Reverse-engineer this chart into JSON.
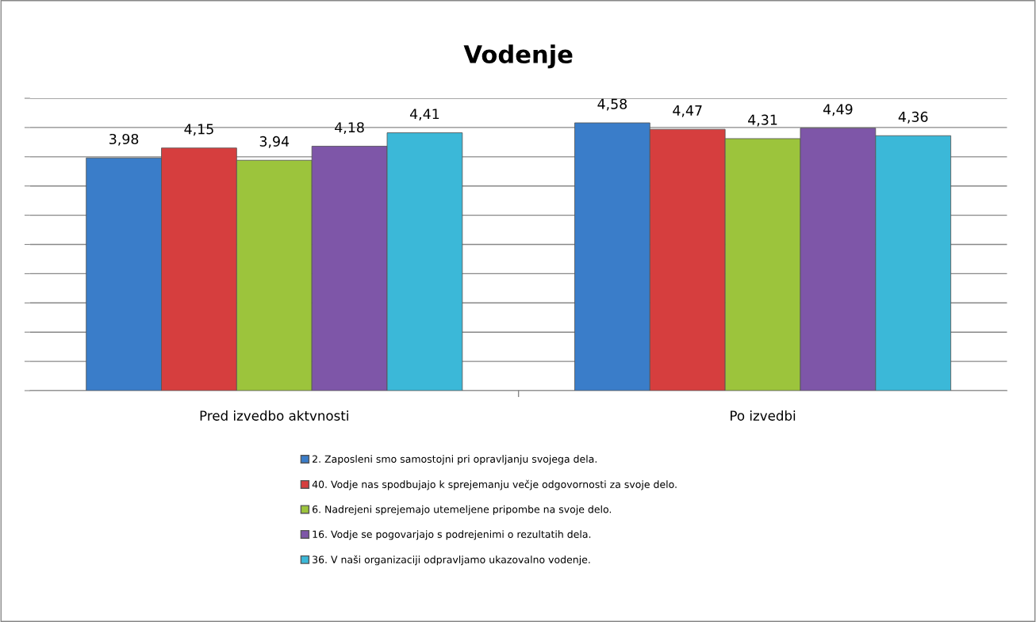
{
  "chart_data": {
    "type": "bar",
    "title": "Vodenje",
    "categories": [
      "Pred izvedbo aktvnosti",
      "Po izvedbi"
    ],
    "series": [
      {
        "name": "2. Zaposleni smo samostojni pri opravljanju svojega dela.",
        "color": "#3a7dc9",
        "values": [
          3.98,
          4.58
        ],
        "value_labels": [
          "3,98",
          "4,58"
        ]
      },
      {
        "name": "40. Vodje nas spodbujajo k sprejemanju večje odgovornosti za svoje delo.",
        "color": "#d63e3e",
        "values": [
          4.15,
          4.47
        ],
        "value_labels": [
          "4,15",
          "4,47"
        ]
      },
      {
        "name": "6. Nadrejeni sprejemajo utemeljene pripombe na svoje delo.",
        "color": "#9cc43c",
        "values": [
          3.94,
          4.31
        ],
        "value_labels": [
          "3,94",
          "4,31"
        ]
      },
      {
        "name": "16. Vodje se pogovarjajo s podrejenimi o rezultatih dela.",
        "color": "#7e56a8",
        "values": [
          4.18,
          4.49
        ],
        "value_labels": [
          "4,18",
          "4,49"
        ]
      },
      {
        "name": "36. V naši organizaciji odpravljamo ukazovalno vodenje.",
        "color": "#3bb8d8",
        "values": [
          4.41,
          4.36
        ],
        "value_labels": [
          "4,41",
          "4,36"
        ]
      }
    ],
    "ylim": [
      0,
      5
    ],
    "yticks": [
      {
        "value": 0,
        "label": null
      },
      {
        "value": 0.5,
        "label": null
      },
      {
        "value": 1,
        "label": null
      },
      {
        "value": 1.5,
        "label": null
      },
      {
        "value": 2,
        "label": null
      },
      {
        "value": 2.5,
        "label": null
      },
      {
        "value": 3,
        "label": null
      },
      {
        "value": 3.5,
        "label": null
      },
      {
        "value": 4,
        "label": null
      },
      {
        "value": 4.5,
        "label": null
      },
      {
        "value": 5,
        "label": null
      }
    ],
    "tick_labels": "x",
    "grid": "y",
    "legend": "bottom",
    "data_labels": true
  }
}
